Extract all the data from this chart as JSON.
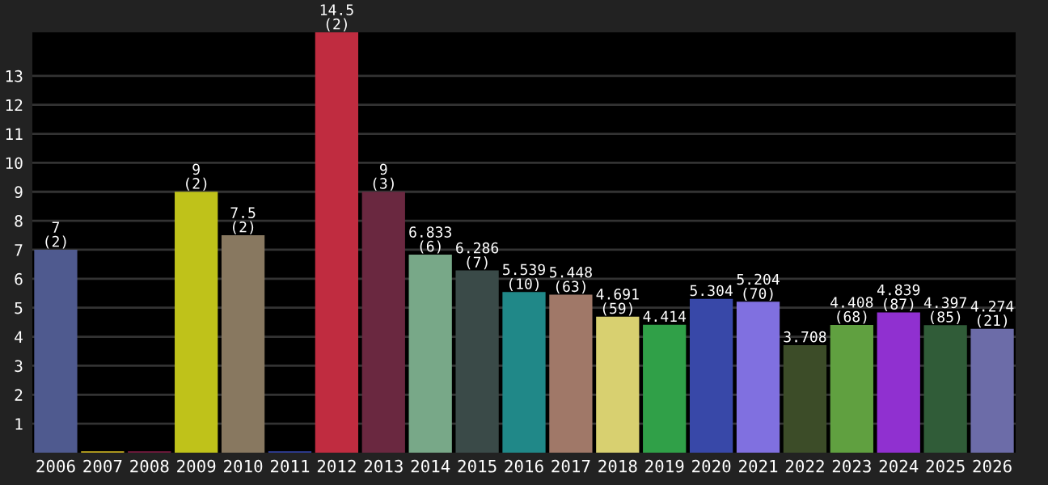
{
  "chart_data": {
    "type": "bar",
    "categories": [
      "2006",
      "2007",
      "2008",
      "2009",
      "2010",
      "2011",
      "2012",
      "2013",
      "2014",
      "2015",
      "2016",
      "2017",
      "2018",
      "2019",
      "2020",
      "2021",
      "2022",
      "2023",
      "2024",
      "2025",
      "2026"
    ],
    "values": [
      7,
      0.05,
      0.05,
      9,
      7.5,
      0.05,
      14.5,
      9,
      6.833,
      6.286,
      5.539,
      5.448,
      4.691,
      4.414,
      5.304,
      5.204,
      3.708,
      4.408,
      4.839,
      4.397,
      4.274
    ],
    "colors": [
      "#4f5a8f",
      "#c8b020",
      "#7a1a40",
      "#bfc21a",
      "#887860",
      "#3040a0",
      "#c02c40",
      "#6a2840",
      "#78a888",
      "#3a4a48",
      "#208888",
      "#a07868",
      "#d8d070",
      "#30a048",
      "#3848a8",
      "#8070e0",
      "#3c4c28",
      "#60a040",
      "#9030d0",
      "#305c38",
      "#6c6ca8"
    ],
    "value_labels": [
      "7 (2)",
      null,
      null,
      "9 (2)",
      "7.5 (2)",
      null,
      "14.5 (2)",
      "9 (3)",
      "6.833 (6)",
      "6.286 (7)",
      "5.539 (10)",
      "5.448 (63)",
      "4.691 (59)",
      "4.414",
      "5.304",
      "5.204 (70)",
      "3.708",
      "4.408 (68)",
      "4.839 (87)",
      "4.397 (85)",
      "4.274 (21)"
    ],
    "ylim": [
      0,
      14.5
    ],
    "yticks": [
      1,
      2,
      3,
      4,
      5,
      6,
      7,
      8,
      9,
      10,
      11,
      12,
      13
    ],
    "grid": "y",
    "legend": false
  }
}
